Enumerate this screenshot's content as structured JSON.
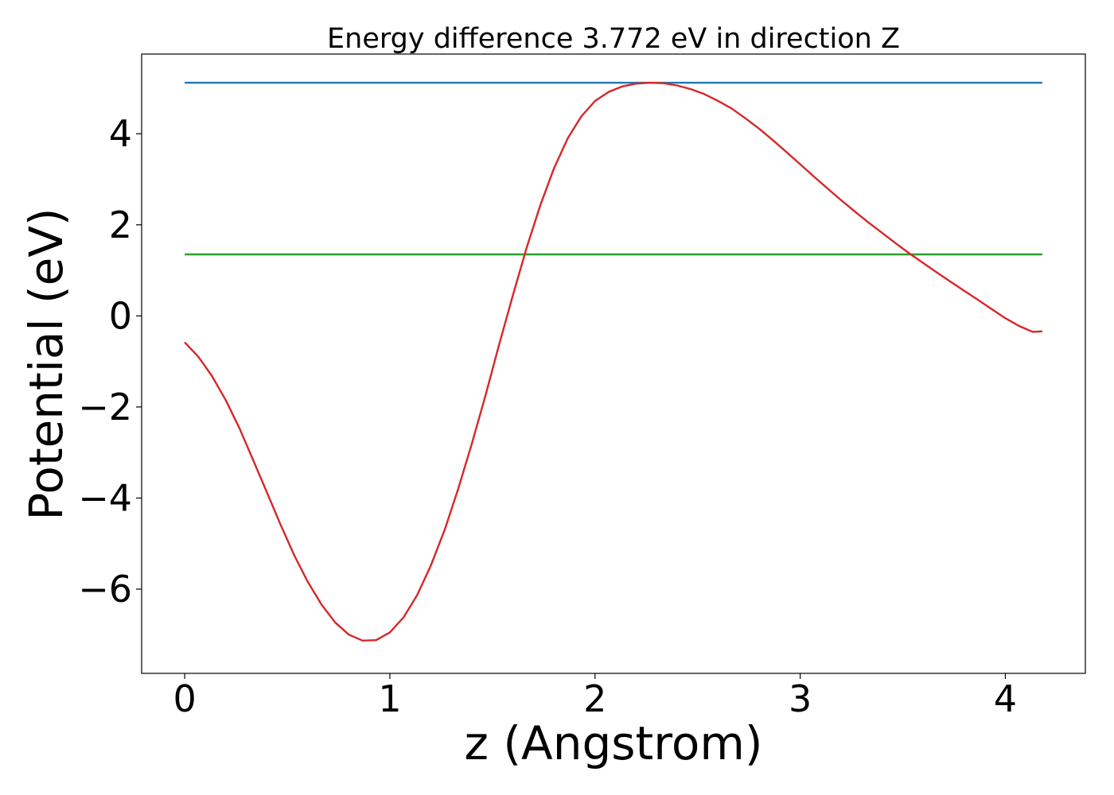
{
  "chart_data": {
    "type": "line",
    "title": "Energy difference 3.772 eV in direction Z",
    "xlabel": "z (Angstrom)",
    "ylabel": "Potential (eV)",
    "xlim": [
      -0.21,
      4.39
    ],
    "ylim": [
      -7.85,
      5.75
    ],
    "xticks": [
      0,
      1,
      2,
      3,
      4
    ],
    "yticks": [
      -6,
      -4,
      -2,
      0,
      2,
      4
    ],
    "grid": false,
    "series": [
      {
        "color": "#d62728",
        "x": [
          0,
          0.067,
          0.133,
          0.2,
          0.267,
          0.333,
          0.4,
          0.467,
          0.533,
          0.6,
          0.667,
          0.733,
          0.8,
          0.867,
          0.933,
          1.0,
          1.067,
          1.133,
          1.2,
          1.267,
          1.333,
          1.4,
          1.467,
          1.533,
          1.6,
          1.667,
          1.733,
          1.8,
          1.867,
          1.933,
          2.0,
          2.067,
          2.133,
          2.2,
          2.267,
          2.333,
          2.4,
          2.467,
          2.533,
          2.6,
          2.667,
          2.733,
          2.8,
          2.867,
          2.933,
          3.0,
          3.067,
          3.133,
          3.2,
          3.267,
          3.333,
          3.4,
          3.467,
          3.533,
          3.6,
          3.667,
          3.733,
          3.8,
          3.867,
          3.933,
          4.0,
          4.067,
          4.133,
          4.18
        ],
        "y": [
          -0.58,
          -0.9,
          -1.32,
          -1.85,
          -2.47,
          -3.16,
          -3.87,
          -4.58,
          -5.25,
          -5.84,
          -6.34,
          -6.73,
          -7.0,
          -7.13,
          -7.12,
          -6.95,
          -6.62,
          -6.13,
          -5.48,
          -4.7,
          -3.8,
          -2.8,
          -1.73,
          -0.62,
          0.46,
          1.5,
          2.43,
          3.24,
          3.9,
          4.38,
          4.72,
          4.92,
          5.04,
          5.1,
          5.12,
          5.11,
          5.06,
          4.98,
          4.87,
          4.72,
          4.55,
          4.34,
          4.11,
          3.86,
          3.6,
          3.33,
          3.06,
          2.8,
          2.54,
          2.29,
          2.05,
          1.82,
          1.59,
          1.37,
          1.16,
          0.95,
          0.75,
          0.55,
          0.35,
          0.15,
          -0.05,
          -0.22,
          -0.35,
          -0.34
        ]
      },
      {
        "color": "#1f77b4",
        "x": [
          0,
          4.18
        ],
        "y": [
          5.12,
          5.12
        ]
      },
      {
        "color": "#2ca02c",
        "x": [
          0,
          4.18
        ],
        "y": [
          1.35,
          1.35
        ]
      }
    ]
  }
}
